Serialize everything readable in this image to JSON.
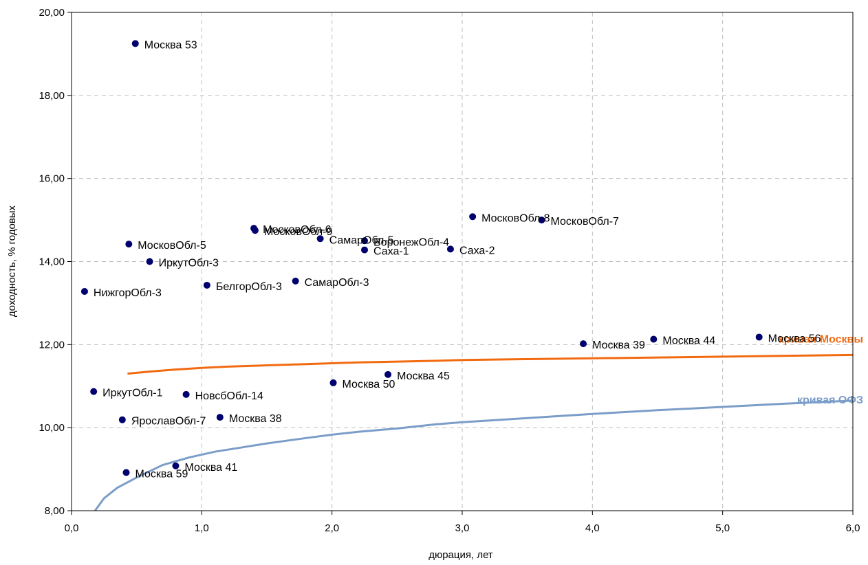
{
  "chart_data": {
    "type": "scatter",
    "title": "",
    "xlabel": "дюрация, лет",
    "ylabel": "доходность, % годовых",
    "xlim": [
      0,
      6
    ],
    "ylim": [
      8,
      20
    ],
    "x_ticks": [
      0,
      1,
      2,
      3,
      4,
      5,
      6
    ],
    "x_tick_labels": [
      "0,0",
      "1,0",
      "2,0",
      "3,0",
      "4,0",
      "5,0",
      "6,0"
    ],
    "y_ticks": [
      8,
      10,
      12,
      14,
      16,
      18,
      20
    ],
    "y_tick_labels": [
      "8,00",
      "10,00",
      "12,00",
      "14,00",
      "16,00",
      "18,00",
      "20,00"
    ],
    "grid": true,
    "points_color": "#00006e",
    "points": [
      {
        "label": "Москва 53",
        "x": 0.49,
        "y": 19.25
      },
      {
        "label": "МосковОбл-6",
        "x": 1.4,
        "y": 14.8
      },
      {
        "label": "МосковОбл-9",
        "x": 1.41,
        "y": 14.75
      },
      {
        "label": "МосковОбл-8",
        "x": 3.08,
        "y": 15.08
      },
      {
        "label": "МосковОбл-7",
        "x": 3.61,
        "y": 15.0
      },
      {
        "label": "МосковОбл-5",
        "x": 0.44,
        "y": 14.42
      },
      {
        "label": "СамарОбл-5",
        "x": 1.91,
        "y": 14.55
      },
      {
        "label": "ВоронежОбл-4",
        "x": 2.25,
        "y": 14.5
      },
      {
        "label": "Саха-1",
        "x": 2.25,
        "y": 14.28
      },
      {
        "label": "Саха-2",
        "x": 2.91,
        "y": 14.3
      },
      {
        "label": "ИркутОбл-3",
        "x": 0.6,
        "y": 14.0
      },
      {
        "label": "НижгорОбл-3",
        "x": 0.1,
        "y": 13.28
      },
      {
        "label": "БелгорОбл-3",
        "x": 1.04,
        "y": 13.43
      },
      {
        "label": "СамарОбл-3",
        "x": 1.72,
        "y": 13.53
      },
      {
        "label": "Москва 39",
        "x": 3.93,
        "y": 12.02
      },
      {
        "label": "Москва 44",
        "x": 4.47,
        "y": 12.13
      },
      {
        "label": "Москва 56",
        "x": 5.28,
        "y": 12.18
      },
      {
        "label": "Москва 45",
        "x": 2.43,
        "y": 11.28
      },
      {
        "label": "Москва 50",
        "x": 2.01,
        "y": 11.08
      },
      {
        "label": "ИркутОбл-1",
        "x": 0.17,
        "y": 10.87
      },
      {
        "label": "НовсбОбл-14",
        "x": 0.88,
        "y": 10.8
      },
      {
        "label": "ЯрославОбл-7",
        "x": 0.39,
        "y": 10.19
      },
      {
        "label": "Москва 38",
        "x": 1.14,
        "y": 10.25
      },
      {
        "label": "Москва 59",
        "x": 0.42,
        "y": 8.92
      },
      {
        "label": "Москва 41",
        "x": 0.8,
        "y": 9.08
      }
    ],
    "series": [
      {
        "name": "кривая Москвы",
        "color": "#f26a10",
        "x": [
          0.43,
          0.6,
          0.8,
          1.0,
          1.2,
          1.5,
          1.8,
          2.0,
          2.2,
          2.5,
          2.8,
          3.0,
          3.5,
          4.0,
          4.5,
          5.0,
          5.5,
          6.0
        ],
        "y": [
          11.3,
          11.35,
          11.4,
          11.44,
          11.47,
          11.5,
          11.53,
          11.55,
          11.57,
          11.59,
          11.61,
          11.63,
          11.65,
          11.67,
          11.69,
          11.71,
          11.73,
          11.75
        ]
      },
      {
        "name": "кривая ОФЗ",
        "color": "#7b9dc9",
        "x": [
          0.18,
          0.25,
          0.35,
          0.5,
          0.7,
          0.9,
          1.1,
          1.3,
          1.5,
          1.8,
          2.0,
          2.2,
          2.5,
          2.8,
          3.0,
          3.5,
          4.0,
          4.5,
          5.0,
          5.5,
          6.0
        ],
        "y": [
          8.0,
          8.3,
          8.55,
          8.8,
          9.1,
          9.28,
          9.42,
          9.52,
          9.62,
          9.75,
          9.83,
          9.9,
          9.98,
          10.08,
          10.13,
          10.23,
          10.33,
          10.42,
          10.5,
          10.58,
          10.65
        ]
      }
    ]
  }
}
